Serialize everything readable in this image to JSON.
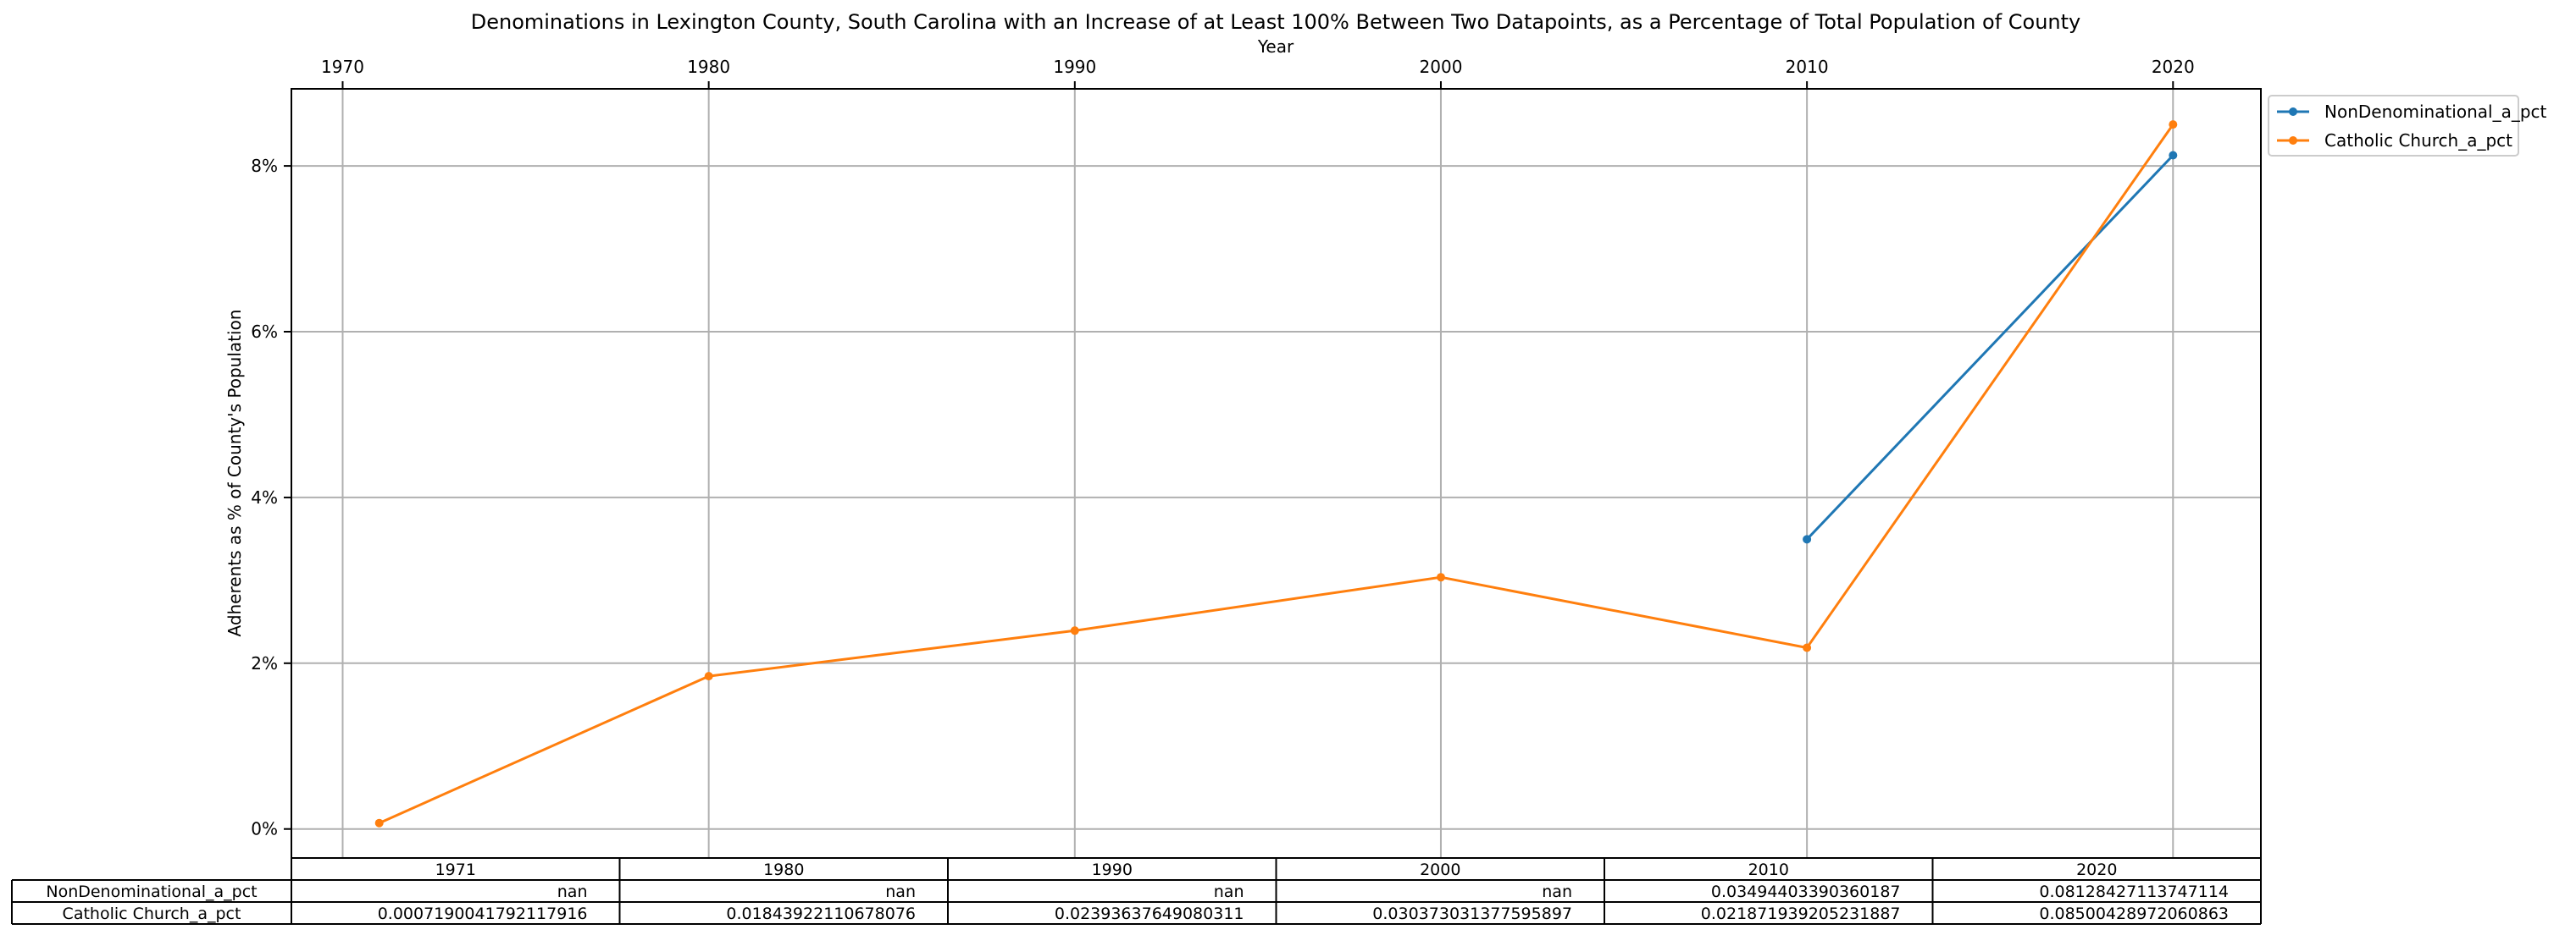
{
  "chart_data": {
    "type": "line",
    "title": "Denominations in Lexington County, South Carolina with an Increase of at Least 100% Between Two Datapoints, as a Percentage of Total Population of County",
    "xlabel": "Year",
    "ylabel": "Adherents as % of County's Population",
    "x_ticks": [
      1970,
      1980,
      1990,
      2000,
      2010,
      2020
    ],
    "xlim": [
      1968.6,
      2022.4
    ],
    "y_ticks": [
      0,
      0.02,
      0.04,
      0.06,
      0.08
    ],
    "y_tick_labels": [
      "0%",
      "2%",
      "4%",
      "6%",
      "8%"
    ],
    "ylim": [
      -0.0035,
      0.0893
    ],
    "grid": true,
    "legend_position": "outside-top-right",
    "series": [
      {
        "name": "NonDenominational_a_pct",
        "color": "#1f77b4",
        "x": [
          1971,
          1980,
          1990,
          2000,
          2010,
          2020
        ],
        "y": [
          null,
          null,
          null,
          null,
          0.03494403390360187,
          0.08128427113747114
        ]
      },
      {
        "name": "Catholic Church_a_pct",
        "color": "#ff7f0e",
        "x": [
          1971,
          1980,
          1990,
          2000,
          2010,
          2020
        ],
        "y": [
          0.0007190041792117916,
          0.01843922110678076,
          0.02393637649080311,
          0.030373031377595897,
          0.021871939205231887,
          0.08500428972060863
        ]
      }
    ],
    "table": {
      "columns": [
        "1971",
        "1980",
        "1990",
        "2000",
        "2010",
        "2020"
      ],
      "rows": [
        {
          "label": "NonDenominational_a_pct",
          "cells": [
            "nan",
            "nan",
            "nan",
            "nan",
            "0.03494403390360187",
            "0.08128427113747114"
          ]
        },
        {
          "label": "Catholic Church_a_pct",
          "cells": [
            "0.0007190041792117916",
            "0.01843922110678076",
            "0.02393637649080311",
            "0.030373031377595897",
            "0.021871939205231887",
            "0.08500428972060863"
          ]
        }
      ]
    }
  }
}
